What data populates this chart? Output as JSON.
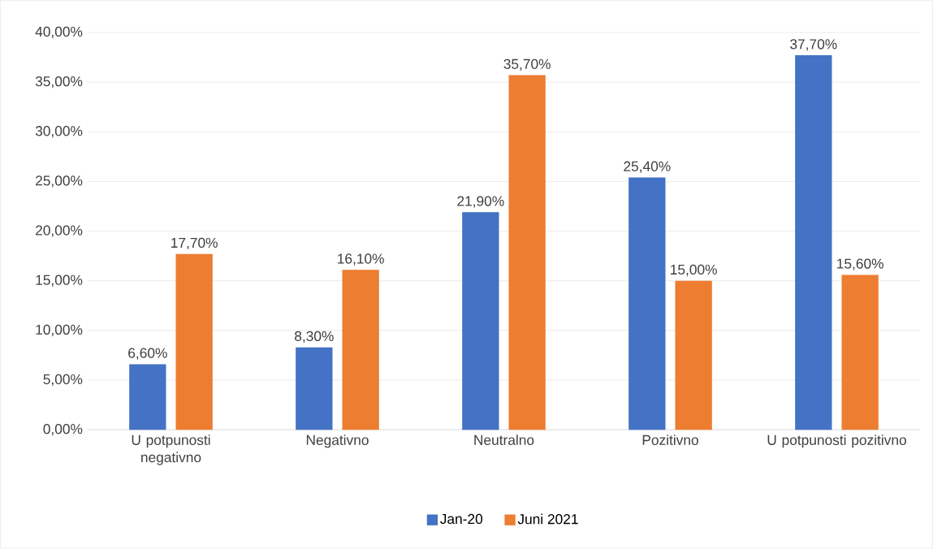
{
  "chart_data": {
    "type": "bar",
    "categories": [
      "U potpunosti negativno",
      "Negativno",
      "Neutralno",
      "Pozitivno",
      "U potpunosti pozitivno"
    ],
    "series": [
      {
        "name": "Jan-20",
        "color": "#4472c4",
        "values": [
          6.6,
          8.3,
          21.9,
          25.4,
          37.7
        ],
        "value_labels": [
          "6,60%",
          "8,30%",
          "21,90%",
          "25,40%",
          "37,70%"
        ]
      },
      {
        "name": "Juni 2021",
        "color": "#ed7d31",
        "values": [
          17.7,
          16.1,
          35.7,
          15.0,
          15.6
        ],
        "value_labels": [
          "17,70%",
          "16,10%",
          "35,70%",
          "15,00%",
          "15,60%"
        ]
      }
    ],
    "ylim": [
      0,
      40
    ],
    "yticks": [
      {
        "value": 0,
        "label": "0,00%"
      },
      {
        "value": 5,
        "label": "5,00%"
      },
      {
        "value": 10,
        "label": "10,00%"
      },
      {
        "value": 15,
        "label": "15,00%"
      },
      {
        "value": 20,
        "label": "20,00%"
      },
      {
        "value": 25,
        "label": "25,00%"
      },
      {
        "value": 30,
        "label": "30,00%"
      },
      {
        "value": 35,
        "label": "35,00%"
      },
      {
        "value": 40,
        "label": "40,00%"
      }
    ],
    "grid": "y",
    "legend": "bottom"
  }
}
